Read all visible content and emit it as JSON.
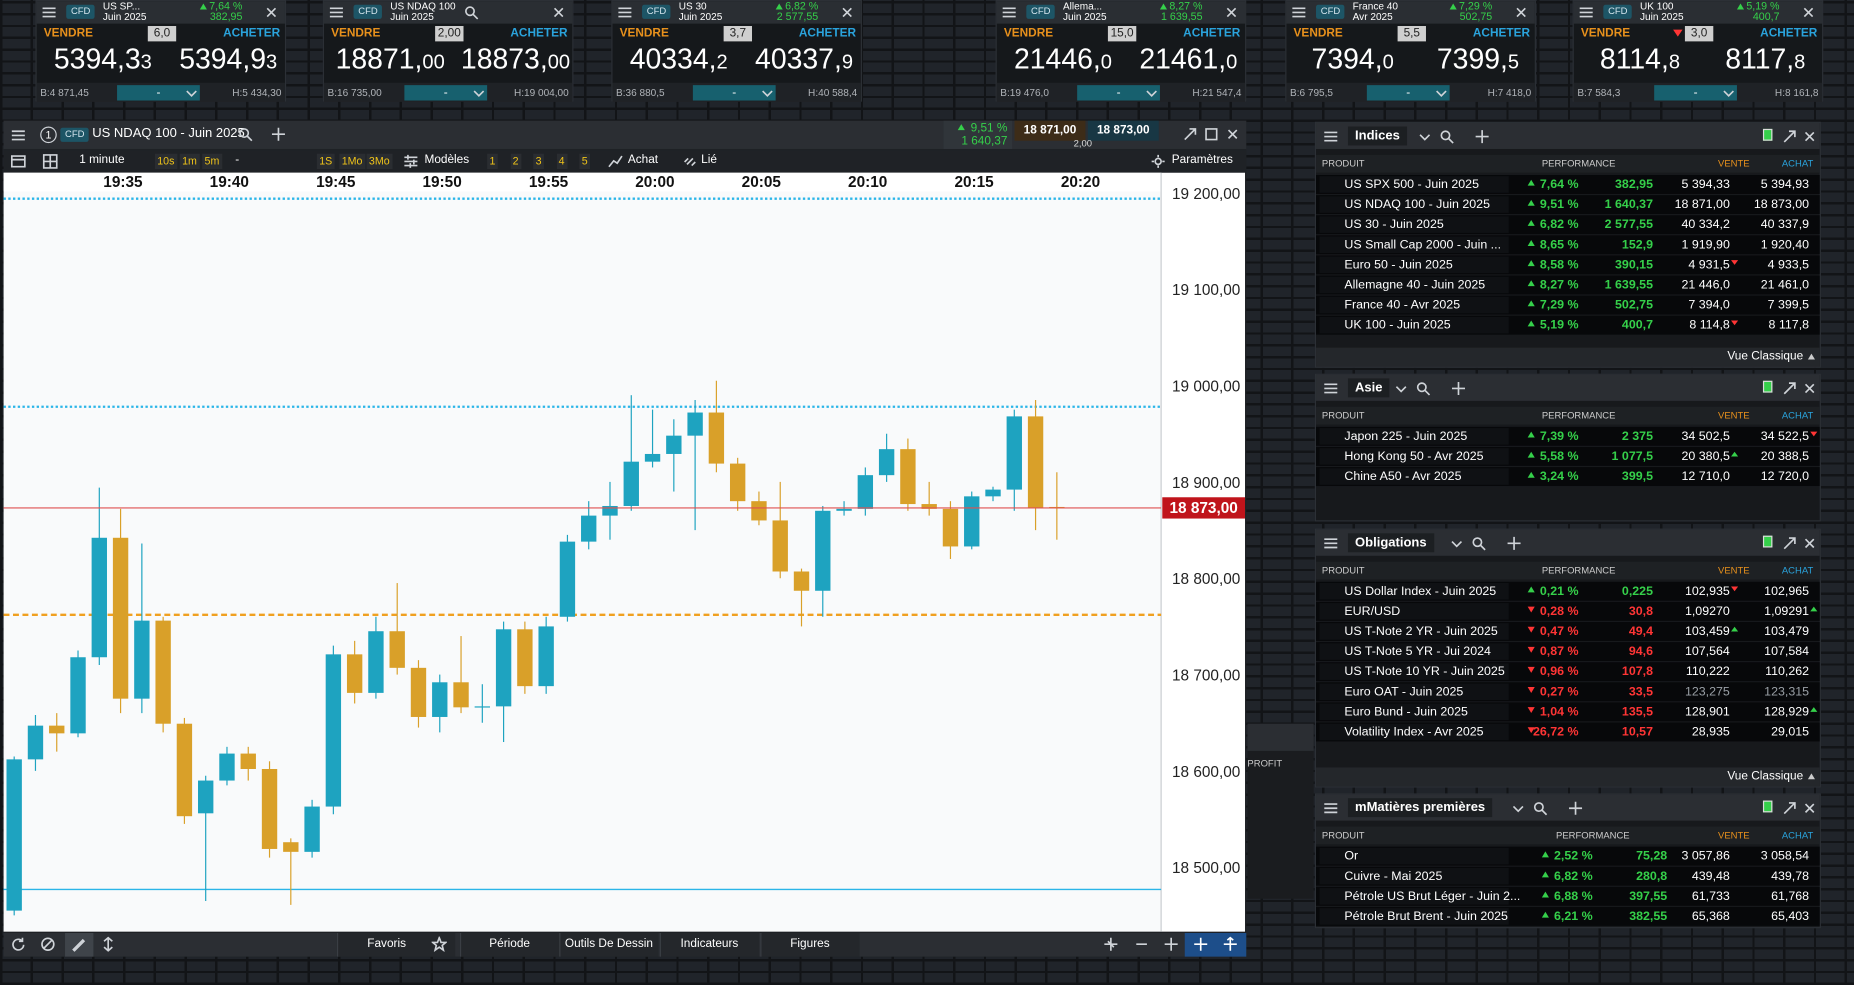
{
  "tiles": [
    {
      "type": "CFD",
      "name": "US SP...",
      "expiry": "Juin 2025",
      "change_pct": "7,64 %",
      "change": "382,95",
      "dir": "up",
      "sell_label": "VENDRE",
      "spread": "6,0",
      "buy_label": "ACHETER",
      "sell_int": "5394,3",
      "sell_dec": "3",
      "buy_int": "5394,9",
      "buy_dec": "3",
      "low": "B:4 871,45",
      "high": "H:5 434,30",
      "qty": "-"
    },
    {
      "type": "CFD",
      "name": "US NDAQ 100",
      "expiry": "Juin 2025",
      "sell_label": "VENDRE",
      "spread": "2,00",
      "buy_label": "ACHETER",
      "sell_int": "18871,",
      "sell_dec": "00",
      "buy_int": "18873,",
      "buy_dec": "00",
      "low": "B:16 735,00",
      "high": "H:19 004,00",
      "qty": "-"
    },
    {
      "type": "CFD",
      "name": "US 30",
      "expiry": "Juin 2025",
      "change_pct": "6,82 %",
      "change": "2 577,55",
      "dir": "up",
      "sell_label": "VENDRE",
      "spread": "3,7",
      "buy_label": "ACHETER",
      "sell_int": "40334,",
      "sell_dec": "2",
      "buy_int": "40337,",
      "buy_dec": "9",
      "low": "B:36 880,5",
      "high": "H:40 588,4",
      "qty": "-"
    },
    {
      "type": "CFD",
      "name": "Allema...",
      "expiry": "Juin 2025",
      "change_pct": "8,27 %",
      "change": "1 639,55",
      "dir": "up",
      "sell_label": "VENDRE",
      "spread": "15,0",
      "buy_label": "ACHETER",
      "sell_int": "21446,",
      "sell_dec": "0",
      "buy_int": "21461,",
      "buy_dec": "0",
      "low": "B:19 476,0",
      "high": "H:21 547,4",
      "qty": "-"
    },
    {
      "type": "CFD",
      "name": "France 40",
      "expiry": "Avr 2025",
      "change_pct": "7,29 %",
      "change": "502,75",
      "dir": "up",
      "sell_label": "VENDRE",
      "spread": "5,5",
      "buy_label": "ACHETER",
      "sell_int": "7394,",
      "sell_dec": "0",
      "buy_int": "7399,",
      "buy_dec": "5",
      "low": "B:6 795,5",
      "high": "H:7 418,0",
      "qty": "-"
    },
    {
      "type": "CFD",
      "name": "UK 100",
      "expiry": "Juin 2025",
      "change_pct": "5,19 %",
      "change": "400,7",
      "dir": "up",
      "sell_label": "VENDRE",
      "spread": "3,0",
      "spread_tick": "down",
      "buy_label": "ACHETER",
      "sell_int": "8114,",
      "sell_dec": "8",
      "buy_int": "8117,",
      "buy_dec": "8",
      "low": "B:7 584,3",
      "high": "H:8 161,8",
      "qty": "-"
    }
  ],
  "chart_window": {
    "index": "1",
    "type": "CFD",
    "title": "US NDAQ 100 - Juin 2025",
    "change_pct": "9,51 %",
    "change": "1 640,37",
    "sell": "18 871,00",
    "buy": "18 873,00",
    "spread": "2,00",
    "toolbar": {
      "interval": "1 minute",
      "short": [
        "10s",
        "1m",
        "5m"
      ],
      "sep": "-",
      "long": [
        "1S",
        "1Mo",
        "3Mo"
      ],
      "templates": "Modèles",
      "slots": [
        "1",
        "2",
        "3",
        "4",
        "5"
      ],
      "trade": "Achat",
      "link": "Lié",
      "settings": "Paramètres"
    },
    "bottom": [
      "Favoris",
      "Période",
      "Outils De Dessin",
      "Indicateurs",
      "Figures"
    ]
  },
  "chart_data": {
    "type": "candlestick",
    "up_color": "#1ea3c0",
    "down_color": "#d9a029",
    "xlim": [
      -0.5,
      53.9
    ],
    "ylim": [
      18433,
      19221
    ],
    "xticks": [
      {
        "value": 5,
        "label": "19:35"
      },
      {
        "value": 10,
        "label": "19:40"
      },
      {
        "value": 15,
        "label": "19:45"
      },
      {
        "value": 20,
        "label": "19:50"
      },
      {
        "value": 25,
        "label": "19:55"
      },
      {
        "value": 30,
        "label": "20:00"
      },
      {
        "value": 35,
        "label": "20:05"
      },
      {
        "value": 40,
        "label": "20:10"
      },
      {
        "value": 45,
        "label": "20:15"
      },
      {
        "value": 50,
        "label": "20:20"
      }
    ],
    "yticks": [
      {
        "value": 19200,
        "label": "19 200,00"
      },
      {
        "value": 19100,
        "label": "19 100,00"
      },
      {
        "value": 19000,
        "label": "19 000,00"
      },
      {
        "value": 18900,
        "label": "18 900,00"
      },
      {
        "value": 18800,
        "label": "18 800,00"
      },
      {
        "value": 18700,
        "label": "18 700,00"
      },
      {
        "value": 18600,
        "label": "18 600,00"
      },
      {
        "value": 18500,
        "label": "18 500,00"
      }
    ],
    "open": [
      18455,
      18612,
      18647,
      18639,
      18718,
      18842,
      18675,
      18756,
      18649,
      18556,
      18590,
      18618,
      18602,
      18526,
      18516,
      18563,
      18721,
      18681,
      18745,
      18707,
      18656,
      18692,
      18667,
      18667,
      18747,
      18688,
      18760,
      18838,
      18865,
      18875,
      18921,
      18929,
      18948,
      18972,
      18919,
      18880,
      18860,
      18807,
      18787,
      18870,
      18872,
      18907,
      18934,
      18877,
      18872,
      18833,
      18885,
      18892,
      18968,
      18874
    ],
    "high": [
      18615,
      18658,
      18660,
      18725,
      18894,
      18872,
      18836,
      18760,
      18655,
      18595,
      18625,
      18625,
      18610,
      18530,
      18570,
      18730,
      18735,
      18760,
      18795,
      18715,
      18700,
      18740,
      18690,
      18755,
      18755,
      18760,
      18845,
      18880,
      18900,
      18990,
      18975,
      18965,
      18985,
      19005,
      18925,
      18890,
      18900,
      18810,
      18875,
      18880,
      18915,
      18950,
      18945,
      18900,
      18880,
      18890,
      18895,
      18975,
      18985,
      18910
    ],
    "low": [
      18450,
      18600,
      18620,
      18635,
      18710,
      18660,
      18660,
      18640,
      18545,
      18465,
      18585,
      18590,
      18510,
      18461,
      18510,
      18555,
      18670,
      18675,
      18700,
      18645,
      18640,
      18660,
      18650,
      18630,
      18680,
      18680,
      18755,
      18830,
      18840,
      18870,
      18915,
      18890,
      18850,
      18910,
      18870,
      18855,
      18800,
      18750,
      18760,
      18865,
      18865,
      18900,
      18870,
      18865,
      18820,
      18830,
      18880,
      18870,
      18850,
      18840
    ],
    "close": [
      18612,
      18647,
      18639,
      18718,
      18842,
      18675,
      18756,
      18649,
      18553,
      18590,
      18618,
      18602,
      18519,
      18516,
      18563,
      18721,
      18681,
      18745,
      18707,
      18656,
      18692,
      18666,
      18667,
      18747,
      18688,
      18750,
      18838,
      18865,
      18875,
      18921,
      18929,
      18948,
      18972,
      18919,
      18880,
      18860,
      18807,
      18787,
      18870,
      18872,
      18907,
      18934,
      18877,
      18872,
      18833,
      18885,
      18892,
      18968,
      18873,
      18873
    ],
    "levels": [
      {
        "value": 19194,
        "color": "#2bb5e8",
        "style": "dotted"
      },
      {
        "value": 18978,
        "color": "#2bb5e8",
        "style": "dotted"
      },
      {
        "value": 18762,
        "color": "#f0a020",
        "style": "dashed"
      },
      {
        "value": 18477,
        "color": "#2bb5e8",
        "style": "solid"
      }
    ],
    "last_price": {
      "value": 18873,
      "label": "18 873,00",
      "color": "#c0141b"
    }
  },
  "side_panel": {
    "label": "PROFIT"
  },
  "panels": [
    {
      "title": "Indices",
      "columns": {
        "product": "PRODUIT",
        "performance": "PERFORMANCE",
        "sell": "VENTE",
        "buy": "ACHAT"
      },
      "footer": "Vue Classique",
      "rows": [
        {
          "name": "US SPX 500 - Juin 2025",
          "dir": "up",
          "pct": "7,64 %",
          "change": "382,95",
          "sell": "5 394,33",
          "buy": "5 394,93"
        },
        {
          "name": "US NDAQ 100 - Juin 2025",
          "dir": "up",
          "pct": "9,51 %",
          "change": "1 640,37",
          "sell": "18 871,00",
          "buy": "18 873,00"
        },
        {
          "name": "US 30 - Juin 2025",
          "dir": "up",
          "pct": "6,82 %",
          "change": "2 577,55",
          "sell": "40 334,2",
          "buy": "40 337,9"
        },
        {
          "name": "US Small Cap 2000 - Juin ...",
          "dir": "up",
          "pct": "8,65 %",
          "change": "152,9",
          "sell": "1 919,90",
          "buy": "1 920,40"
        },
        {
          "name": "Euro 50 - Juin 2025",
          "dir": "up",
          "pct": "8,58 %",
          "change": "390,15",
          "sell": "4 931,5",
          "sell_tick": "down",
          "buy": "4 933,5"
        },
        {
          "name": "Allemagne 40 - Juin 2025",
          "dir": "up",
          "pct": "8,27 %",
          "change": "1 639,55",
          "sell": "21 446,0",
          "buy": "21 461,0"
        },
        {
          "name": "France 40 - Avr 2025",
          "dir": "up",
          "pct": "7,29 %",
          "change": "502,75",
          "sell": "7 394,0",
          "buy": "7 399,5"
        },
        {
          "name": "UK 100 - Juin 2025",
          "dir": "up",
          "pct": "5,19 %",
          "change": "400,7",
          "sell": "8 114,8",
          "sell_tick": "down",
          "buy": "8 117,8"
        }
      ]
    },
    {
      "title": "Asie",
      "columns": {
        "product": "PRODUIT",
        "performance": "PERFORMANCE",
        "sell": "VENTE",
        "buy": "ACHAT"
      },
      "rows": [
        {
          "name": "Japon 225 - Juin 2025",
          "dir": "up",
          "pct": "7,39 %",
          "change": "2 375",
          "sell": "34 502,5",
          "buy": "34 522,5",
          "buy_tick": "down"
        },
        {
          "name": "Hong Kong 50 - Avr 2025",
          "dir": "up",
          "pct": "5,58 %",
          "change": "1 077,5",
          "sell": "20 380,5",
          "sell_tick": "up",
          "buy": "20 388,5"
        },
        {
          "name": "Chine A50 - Avr 2025",
          "dir": "up",
          "pct": "3,24 %",
          "change": "399,5",
          "sell": "12 710,0",
          "buy": "12 720,0"
        }
      ]
    },
    {
      "title": "Obligations",
      "columns": {
        "product": "PRODUIT",
        "performance": "PERFORMANCE",
        "sell": "VENTE",
        "buy": "ACHAT"
      },
      "footer": "Vue Classique",
      "rows": [
        {
          "name": "US Dollar Index - Juin 2025",
          "dir": "up",
          "pct": "0,21 %",
          "change": "0,225",
          "sell": "102,935",
          "sell_tick": "down",
          "buy": "102,965"
        },
        {
          "name": "EUR/USD",
          "dir": "down",
          "pct": "0,28 %",
          "change": "30,8",
          "sell": "1,09270",
          "buy": "1,09291",
          "buy_tick": "up"
        },
        {
          "name": "US T-Note 2 YR - Juin 2025",
          "dir": "down",
          "pct": "0,47 %",
          "change": "49,4",
          "sell": "103,459",
          "sell_tick": "up",
          "buy": "103,479"
        },
        {
          "name": "US T-Note 5 YR - Jui 2024",
          "dir": "down",
          "pct": "0,87 %",
          "change": "94,6",
          "sell": "107,564",
          "buy": "107,584"
        },
        {
          "name": "US T-Note 10 YR - Juin 2025",
          "dir": "down",
          "pct": "0,96 %",
          "change": "107,8",
          "sell": "110,222",
          "buy": "110,262"
        },
        {
          "name": "Euro OAT - Juin 2025",
          "dir": "down",
          "pct": "0,27 %",
          "change": "33,5",
          "sell": "123,275",
          "buy": "123,315",
          "muted": true
        },
        {
          "name": "Euro Bund - Juin 2025",
          "dir": "down",
          "pct": "1,04 %",
          "change": "135,5",
          "sell": "128,901",
          "buy": "128,929",
          "buy_tick": "up"
        },
        {
          "name": "Volatility Index - Avr 2025",
          "dir": "down",
          "pct": "26,72 %",
          "change": "10,57",
          "sell": "28,935",
          "buy": "29,015"
        }
      ]
    },
    {
      "title": "mMatières premières",
      "columns": {
        "product": "PRODUIT",
        "performance": "PERFORMANCE",
        "sell": "VENTE",
        "buy": "ACHAT"
      },
      "rows": [
        {
          "name": "Or",
          "dir": "up",
          "pct": "2,52 %",
          "change": "75,28",
          "sell": "3 057,86",
          "buy": "3 058,54"
        },
        {
          "name": "Cuivre - Mai 2025",
          "dir": "up",
          "pct": "6,82 %",
          "change": "280,8",
          "sell": "439,48",
          "buy": "439,78"
        },
        {
          "name": "Pétrole US Brut Léger - Juin 2...",
          "dir": "up",
          "pct": "6,88 %",
          "change": "397,55",
          "sell": "61,733",
          "buy": "61,768"
        },
        {
          "name": "Pétrole Brut Brent - Juin 2025",
          "dir": "up",
          "pct": "6,21 %",
          "change": "382,55",
          "sell": "65,368",
          "buy": "65,403"
        }
      ]
    }
  ]
}
